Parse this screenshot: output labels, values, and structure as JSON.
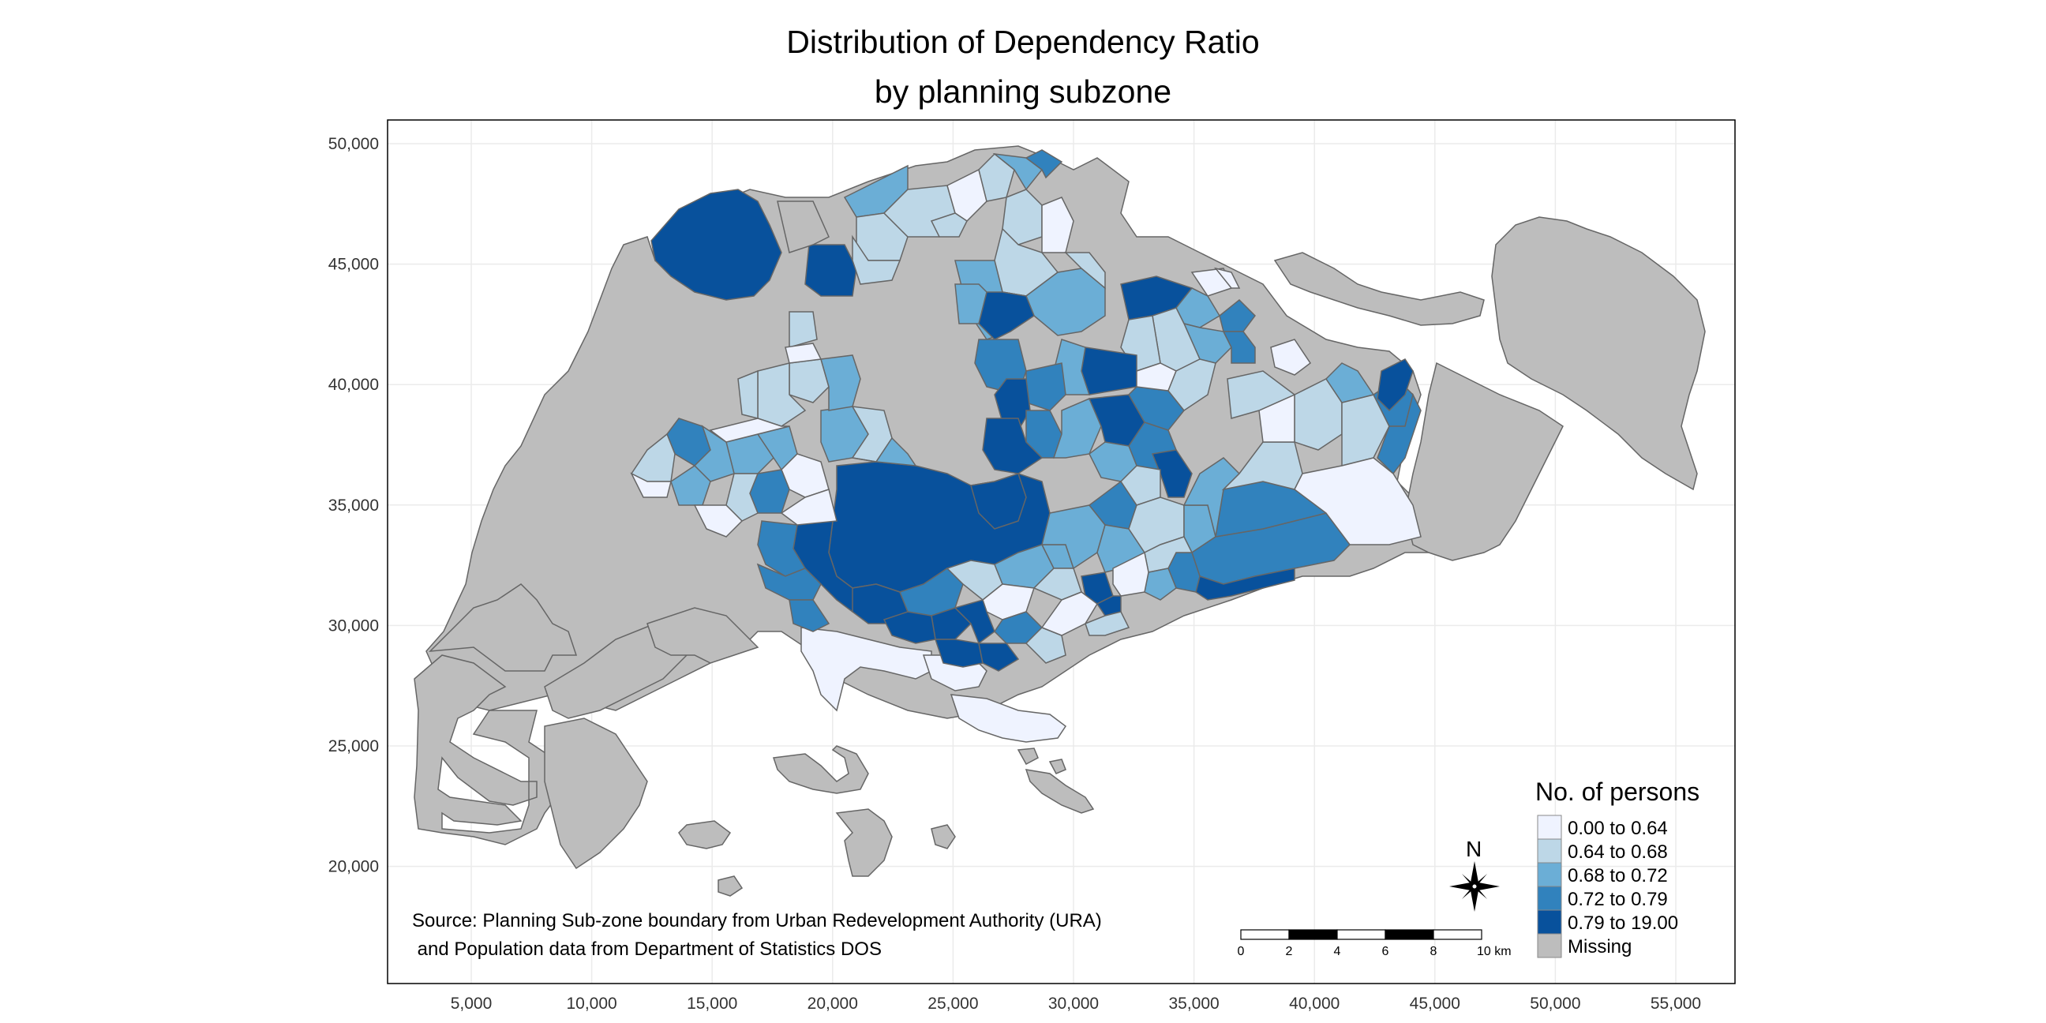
{
  "title": {
    "line1": "Distribution of Dependency Ratio",
    "line2": "by planning subzone"
  },
  "axes": {
    "x_ticks": [
      "5,000",
      "10,000",
      "15,000",
      "20,000",
      "25,000",
      "30,000",
      "35,000",
      "40,000",
      "45,000",
      "50,000",
      "55,000"
    ],
    "y_ticks": [
      "50,000",
      "45,000",
      "40,000",
      "35,000",
      "30,000",
      "25,000",
      "20,000"
    ]
  },
  "legend": {
    "title": "No. of persons",
    "items": [
      {
        "label": "0.00 to 0.64",
        "color": "#eff3ff"
      },
      {
        "label": "0.64 to 0.68",
        "color": "#bdd7e7"
      },
      {
        "label": "0.68 to 0.72",
        "color": "#6baed6"
      },
      {
        "label": "0.72 to 0.79",
        "color": "#3182bd"
      },
      {
        "label": "0.79 to 19.00",
        "color": "#08519c"
      },
      {
        "label": "Missing",
        "color": "#bdbdbd"
      }
    ]
  },
  "scale_bar": {
    "labels": [
      "0",
      "2",
      "4",
      "6",
      "8",
      "10 km"
    ]
  },
  "compass": {
    "label": "N"
  },
  "source": {
    "line1": "Source: Planning Sub-zone boundary from Urban Redevelopment Authority (URA)",
    "line2": " and Population data from Department of Statistics DOS"
  },
  "colors": {
    "missing": "#bdbdbd",
    "border": "#666666",
    "grid": "#ebebeb"
  }
}
